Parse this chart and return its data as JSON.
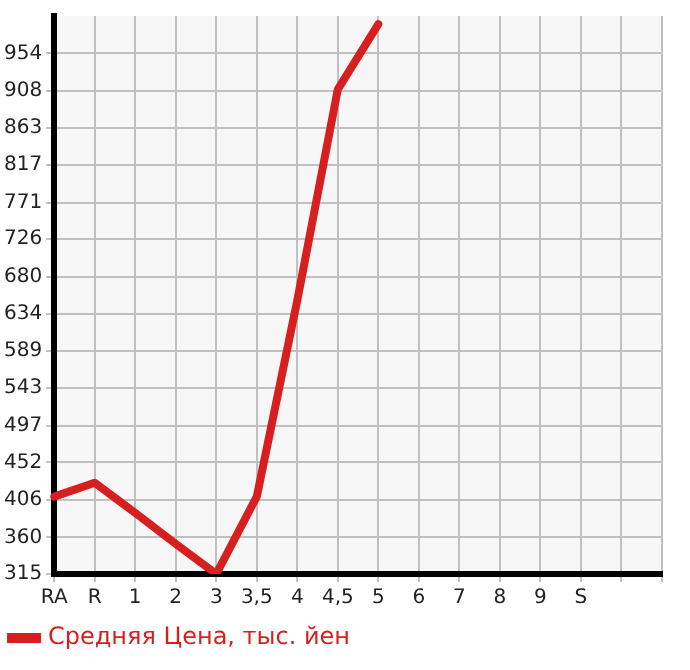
{
  "chart_data": {
    "type": "line",
    "categories": [
      "RA",
      "R",
      "1",
      "2",
      "3",
      "3,5",
      "4",
      "4,5",
      "5",
      "6",
      "7",
      "8",
      "9",
      "S",
      null,
      null
    ],
    "series": [
      {
        "name": "Средняя Цена, тыс. йен",
        "color": "#d71f20",
        "values": [
          410,
          427,
          390,
          352,
          315,
          410,
          651,
          910,
          990,
          null,
          null,
          null,
          null,
          null,
          null,
          null
        ]
      }
    ],
    "ylim": [
      315,
      1000
    ],
    "yticks": [
      315,
      360,
      406,
      452,
      497,
      543,
      589,
      634,
      680,
      726,
      771,
      817,
      863,
      908,
      954
    ],
    "grid": true,
    "legend": "bottom left",
    "marker": "none",
    "line_style": "solid"
  }
}
